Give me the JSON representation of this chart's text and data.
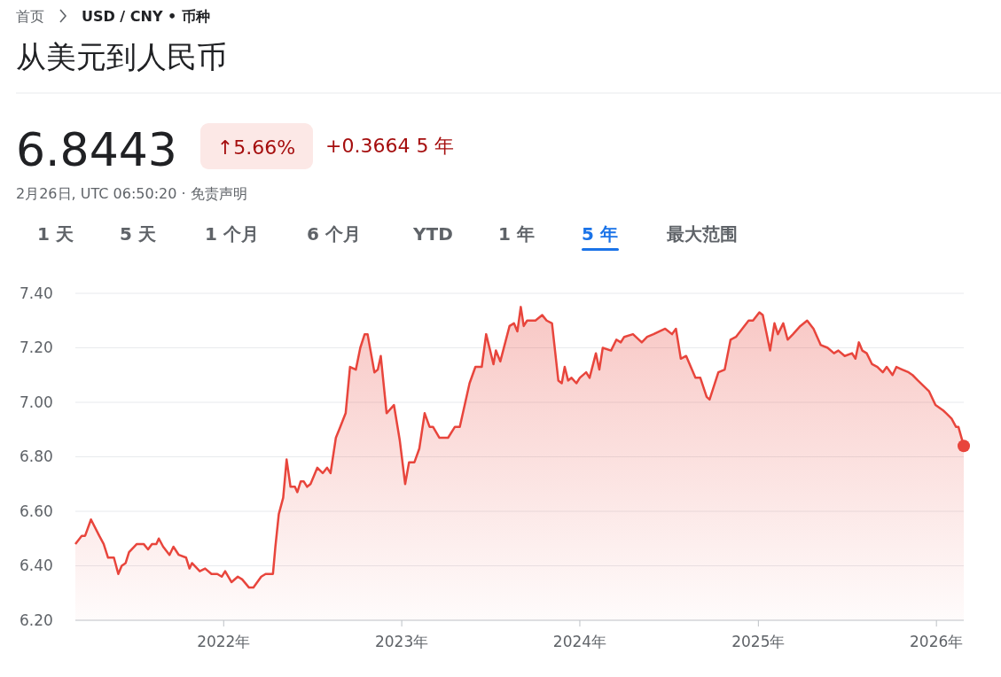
{
  "chart_data": {
    "type": "area",
    "title": "从美元到人民币",
    "annotations": [
      "首页",
      "USD / CNY • 币种",
      "6.8443",
      "↑5.66%",
      "+0.3664 5 年",
      "2月26日, UTC 06:50:20 · 免责声明",
      "1 天",
      "5 天",
      "1 个月",
      "6 个月",
      "YTD",
      "1 年",
      "5 年",
      "最大范围"
    ],
    "x": [
      "2021-03-03",
      "2021-03-16",
      "2021-03-23",
      "2021-04-04",
      "2021-04-21",
      "2021-04-30",
      "2021-05-09",
      "2021-05-21",
      "2021-05-30",
      "2021-06-06",
      "2021-06-14",
      "2021-06-21",
      "2021-07-07",
      "2021-07-21",
      "2021-07-30",
      "2021-08-07",
      "2021-08-16",
      "2021-08-21",
      "2021-08-30",
      "2021-09-12",
      "2021-09-20",
      "2021-10-01",
      "2021-10-16",
      "2021-10-23",
      "2021-10-28",
      "2021-11-13",
      "2021-11-24",
      "2021-12-07",
      "2021-12-19",
      "2021-12-28",
      "2022-01-04",
      "2022-01-17",
      "2022-01-30",
      "2022-02-08",
      "2022-02-22",
      "2022-03-03",
      "2022-03-19",
      "2022-03-28",
      "2022-04-12",
      "2022-04-17",
      "2022-04-24",
      "2022-05-03",
      "2022-05-10",
      "2022-05-18",
      "2022-05-27",
      "2022-06-01",
      "2022-06-08",
      "2022-06-14",
      "2022-06-21",
      "2022-06-28",
      "2022-07-12",
      "2022-07-23",
      "2022-08-01",
      "2022-08-08",
      "2022-08-19",
      "2022-08-28",
      "2022-09-08",
      "2022-09-17",
      "2022-09-29",
      "2022-10-08",
      "2022-10-17",
      "2022-10-23",
      "2022-11-06",
      "2022-11-13",
      "2022-11-19",
      "2022-12-01",
      "2022-12-16",
      "2022-12-28",
      "2023-01-08",
      "2023-01-16",
      "2023-01-27",
      "2023-02-06",
      "2023-02-17",
      "2023-02-27",
      "2023-03-06",
      "2023-03-19",
      "2023-04-06",
      "2023-04-20",
      "2023-04-30",
      "2023-05-20",
      "2023-06-01",
      "2023-06-14",
      "2023-06-23",
      "2023-07-08",
      "2023-07-13",
      "2023-07-22",
      "2023-08-10",
      "2023-08-19",
      "2023-08-26",
      "2023-09-02",
      "2023-09-08",
      "2023-09-15",
      "2023-10-02",
      "2023-10-16",
      "2023-10-25",
      "2023-11-05",
      "2023-11-18",
      "2023-11-25",
      "2023-12-01",
      "2023-12-08",
      "2023-12-15",
      "2023-12-25",
      "2024-01-01",
      "2024-01-14",
      "2024-01-21",
      "2024-02-03",
      "2024-02-10",
      "2024-02-17",
      "2024-03-05",
      "2024-03-16",
      "2024-03-25",
      "2024-04-01",
      "2024-04-19",
      "2024-05-07",
      "2024-05-18",
      "2024-05-31",
      "2024-06-24",
      "2024-07-08",
      "2024-07-16",
      "2024-07-26",
      "2024-08-06",
      "2024-08-25",
      "2024-09-04",
      "2024-09-17",
      "2024-09-23",
      "2024-10-11",
      "2024-10-24",
      "2024-11-05",
      "2024-11-16",
      "2024-11-29",
      "2024-12-12",
      "2024-12-21",
      "2025-01-03",
      "2025-01-10",
      "2025-01-25",
      "2025-02-03",
      "2025-02-10",
      "2025-02-21",
      "2025-03-02",
      "2025-03-13",
      "2025-03-28",
      "2025-04-11",
      "2025-04-24",
      "2025-05-09",
      "2025-05-23",
      "2025-06-05",
      "2025-06-14",
      "2025-06-27",
      "2025-07-12",
      "2025-07-19",
      "2025-07-26",
      "2025-08-02",
      "2025-08-11",
      "2025-08-22",
      "2025-09-02",
      "2025-09-13",
      "2025-09-21",
      "2025-10-03",
      "2025-10-11",
      "2025-10-23",
      "2025-11-05",
      "2025-11-13",
      "2025-11-24",
      "2025-12-17",
      "2025-12-30",
      "2026-01-15",
      "2026-01-21",
      "2026-02-01",
      "2026-02-10",
      "2026-02-15",
      "2026-02-26"
    ],
    "series": [
      {
        "color": "#e8453c",
        "values": [
          6.48,
          6.51,
          6.51,
          6.57,
          6.51,
          6.48,
          6.43,
          6.43,
          6.37,
          6.4,
          6.41,
          6.45,
          6.48,
          6.48,
          6.46,
          6.48,
          6.48,
          6.5,
          6.47,
          6.44,
          6.47,
          6.44,
          6.43,
          6.39,
          6.41,
          6.38,
          6.39,
          6.37,
          6.37,
          6.36,
          6.38,
          6.34,
          6.36,
          6.35,
          6.32,
          6.32,
          6.36,
          6.37,
          6.37,
          6.47,
          6.59,
          6.65,
          6.79,
          6.69,
          6.69,
          6.67,
          6.71,
          6.71,
          6.69,
          6.7,
          6.76,
          6.74,
          6.76,
          6.74,
          6.87,
          6.91,
          6.96,
          7.13,
          7.12,
          7.2,
          7.25,
          7.25,
          7.11,
          7.12,
          7.17,
          6.96,
          6.99,
          6.86,
          6.7,
          6.78,
          6.78,
          6.83,
          6.96,
          6.91,
          6.91,
          6.87,
          6.87,
          6.91,
          6.91,
          7.07,
          7.13,
          7.13,
          7.25,
          7.14,
          7.19,
          7.15,
          7.28,
          7.29,
          7.26,
          7.35,
          7.28,
          7.3,
          7.3,
          7.32,
          7.3,
          7.29,
          7.08,
          7.07,
          7.13,
          7.08,
          7.09,
          7.07,
          7.09,
          7.11,
          7.09,
          7.18,
          7.12,
          7.2,
          7.19,
          7.23,
          7.22,
          7.24,
          7.25,
          7.22,
          7.24,
          7.25,
          7.27,
          7.25,
          7.27,
          7.16,
          7.17,
          7.09,
          7.09,
          7.02,
          7.01,
          7.11,
          7.12,
          7.23,
          7.24,
          7.27,
          7.3,
          7.3,
          7.33,
          7.32,
          7.19,
          7.29,
          7.25,
          7.29,
          7.23,
          7.25,
          7.28,
          7.3,
          7.27,
          7.21,
          7.2,
          7.18,
          7.19,
          7.17,
          7.18,
          7.16,
          7.22,
          7.19,
          7.18,
          7.14,
          7.13,
          7.11,
          7.13,
          7.1,
          7.13,
          7.12,
          7.11,
          7.1,
          7.08,
          7.04,
          6.99,
          6.97,
          6.96,
          6.94,
          6.91,
          6.91,
          6.84
        ]
      }
    ],
    "xlim": [
      "2021-03-03",
      "2026-02-26"
    ],
    "xticks": [
      {
        "value": "2022-01-01",
        "label": "2022年"
      },
      {
        "value": "2023-01-01",
        "label": "2023年"
      },
      {
        "value": "2024-01-01",
        "label": "2024年"
      },
      {
        "value": "2025-01-01",
        "label": "2025年"
      },
      {
        "value": "2026-01-01",
        "label": "2026年"
      }
    ],
    "ylim": [
      6.2,
      7.4
    ],
    "yticks": [
      {
        "value": 6.2,
        "label": "6.20"
      },
      {
        "value": 6.4,
        "label": "6.40"
      },
      {
        "value": 6.6,
        "label": "6.60"
      },
      {
        "value": 6.8,
        "label": "6.80"
      },
      {
        "value": 7.0,
        "label": "7.00"
      },
      {
        "value": 7.2,
        "label": "7.20"
      },
      {
        "value": 7.4,
        "label": "7.40"
      }
    ],
    "grid": "y",
    "marker": "none",
    "line_style": "solid"
  }
}
